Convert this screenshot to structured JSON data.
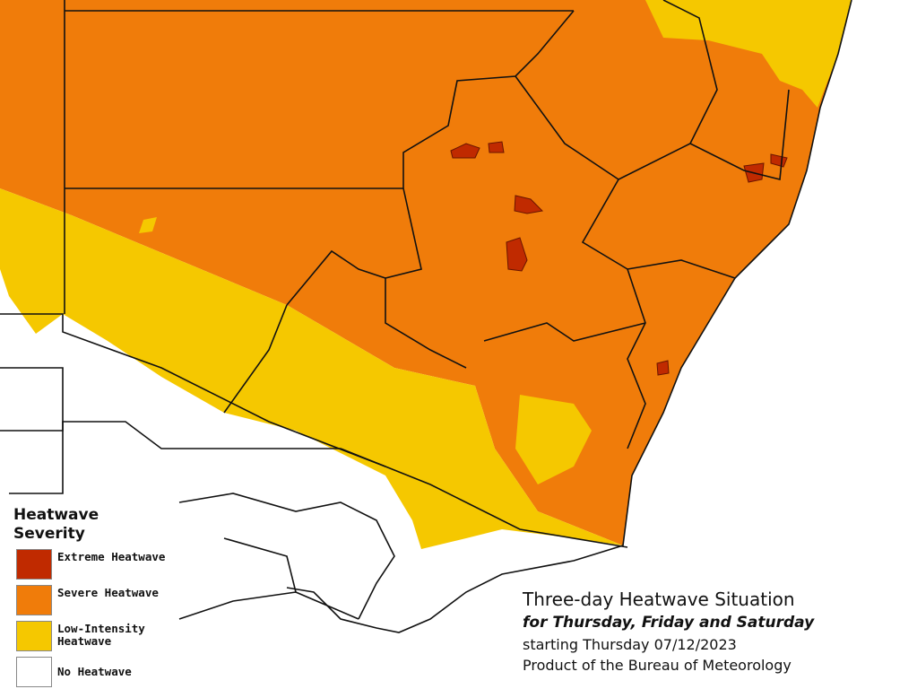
{
  "legend": {
    "title": "Heatwave Severity",
    "items": [
      {
        "label": "Extreme Heatwave",
        "color": "#c02a00"
      },
      {
        "label": "Severe Heatwave",
        "color": "#f07c0a"
      },
      {
        "label": "Low-Intensity Heatwave",
        "color": "#f5c800"
      },
      {
        "label": "No Heatwave",
        "color": "#ffffff"
      }
    ]
  },
  "info": {
    "title": "Three-day Heatwave Situation",
    "subtitle": "for Thursday, Friday and Saturday",
    "date_line": "starting Thursday 07/12/2023",
    "source": "Product of the Bureau of Meteorology"
  }
}
